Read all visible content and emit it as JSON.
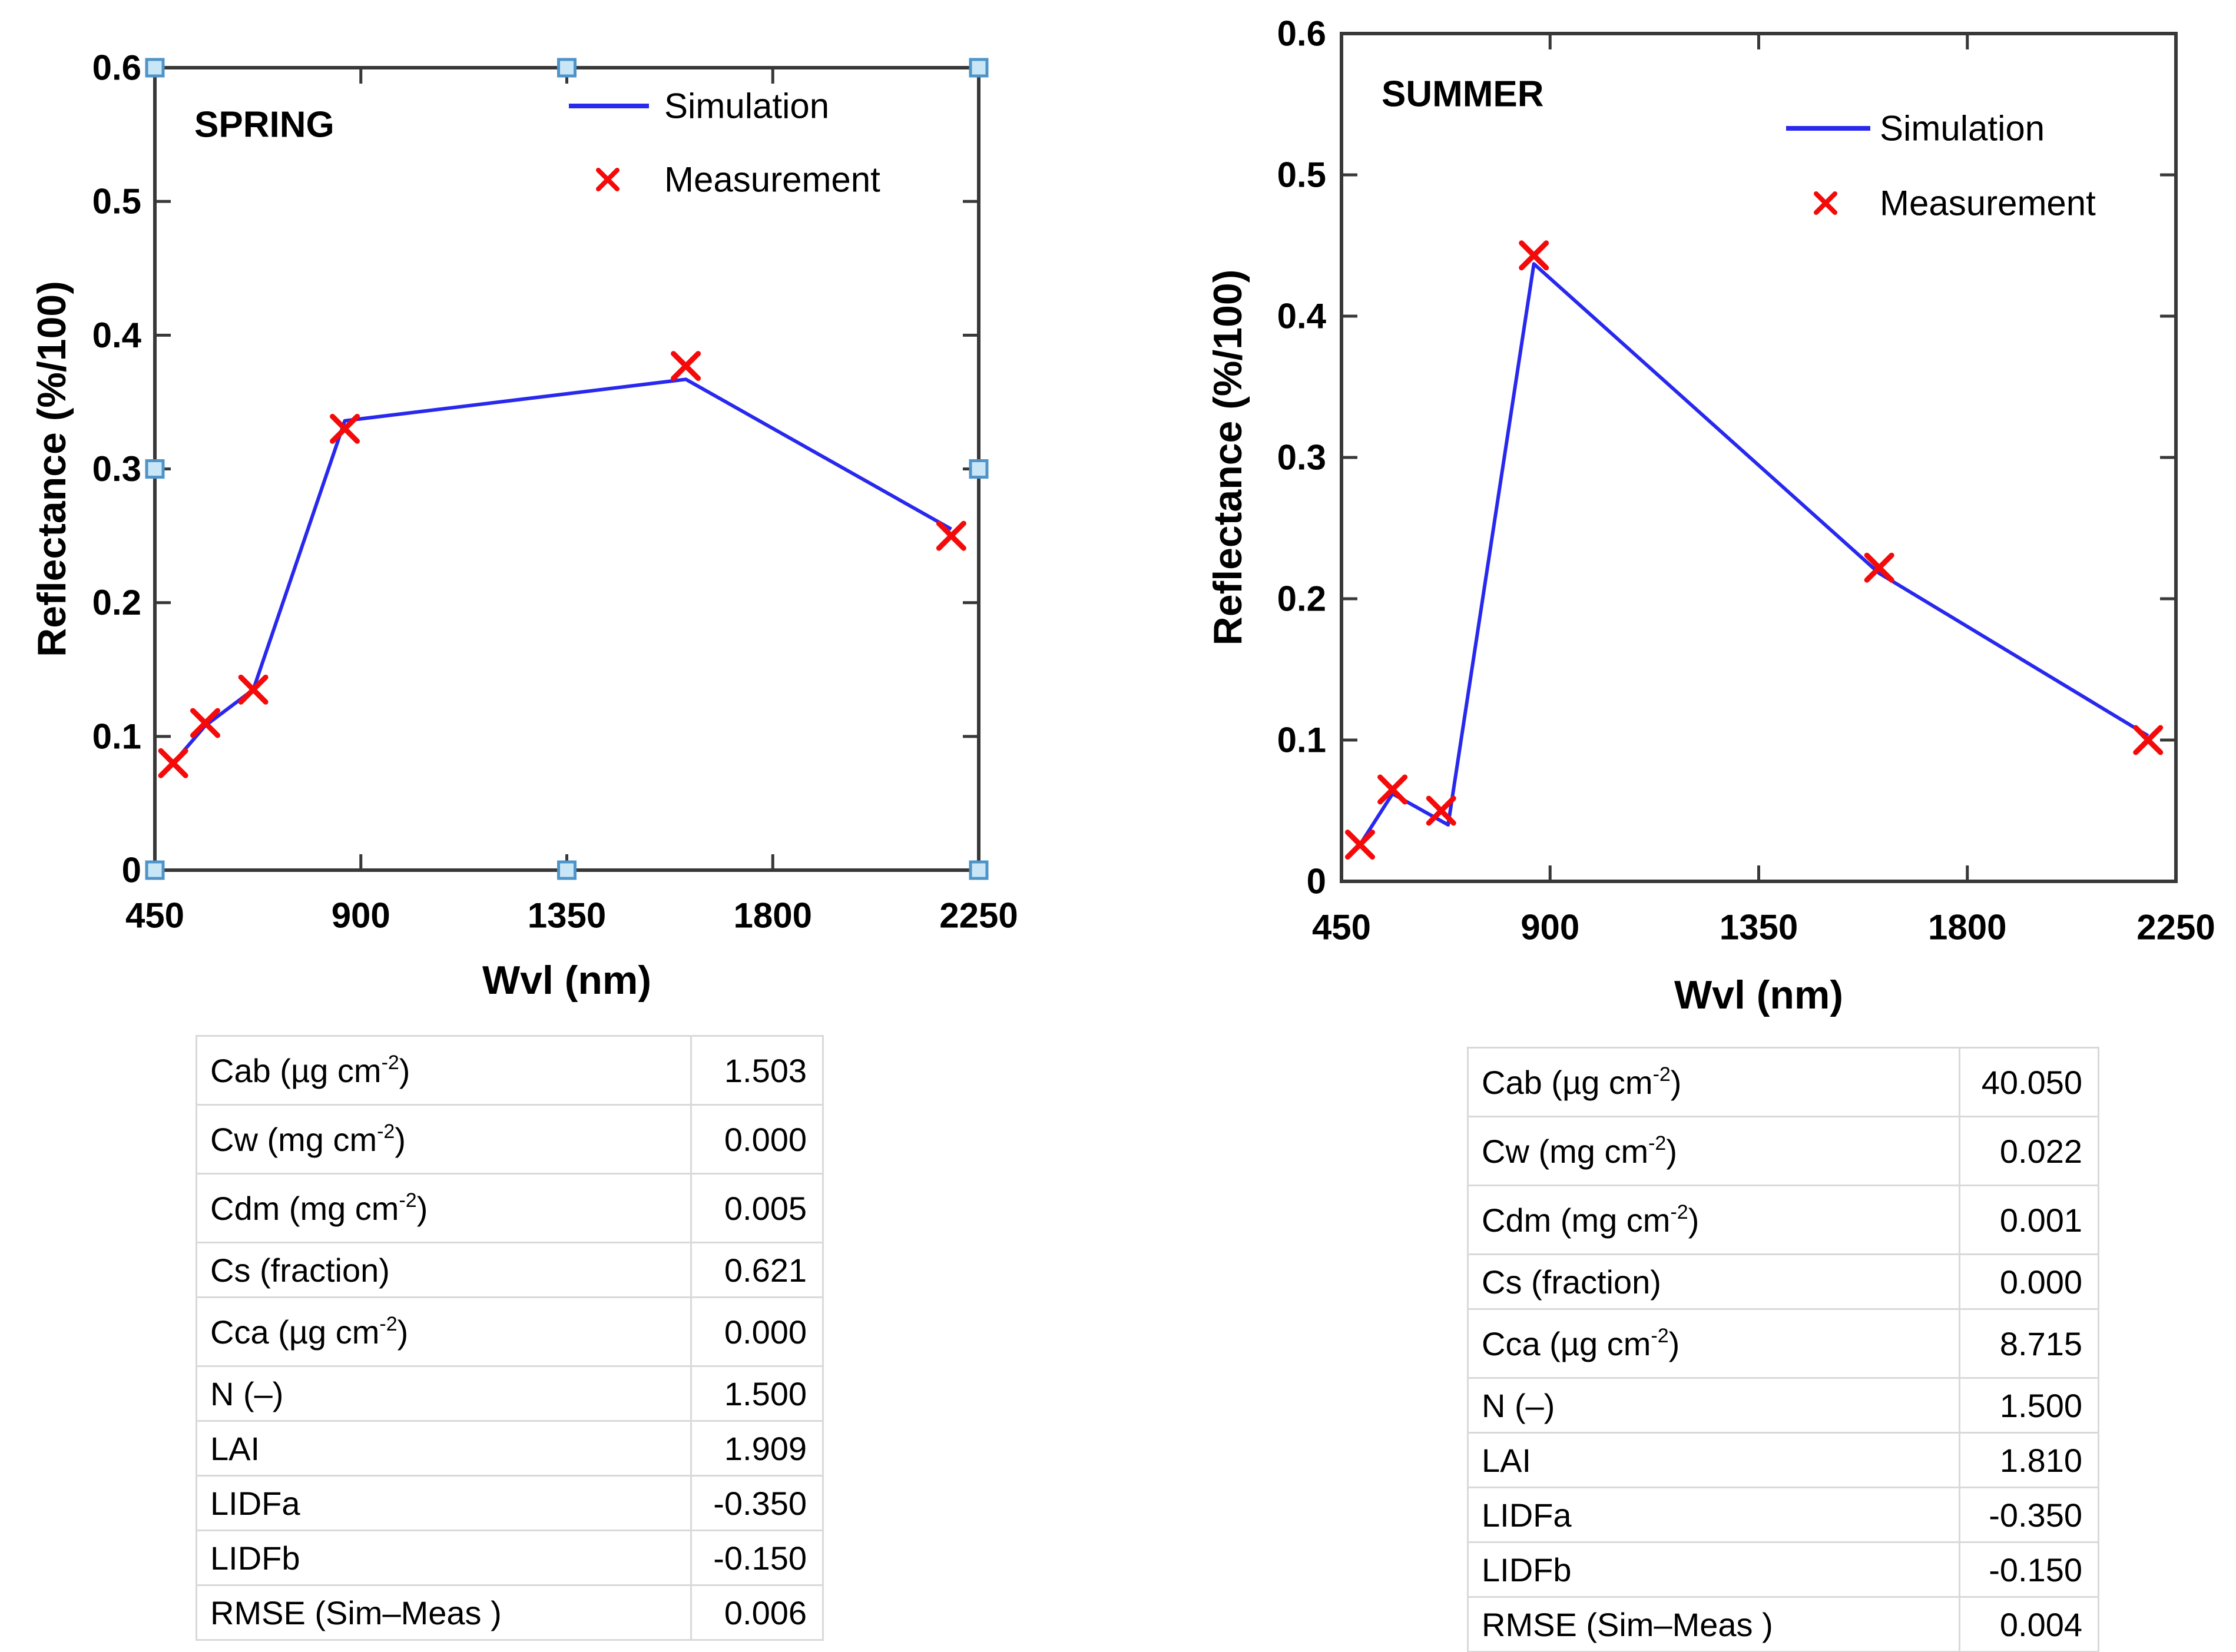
{
  "figure": {
    "background": "#ffffff",
    "colors": {
      "simulation_line": "#2828ee",
      "measurement_marker": "#f50a0a",
      "axis": "#383838",
      "tick_label": "#000000",
      "handle_fill": "#c9e6f6",
      "handle_stroke": "#4e94c9",
      "table_border": "#d9d9d9",
      "table_text": "#000000"
    }
  },
  "chart_data": [
    {
      "type": "line",
      "panel": "spring",
      "title": "SPRING",
      "xlabel": "Wvl (nm)",
      "ylabel": "Reflectance (%/100)",
      "xlim": [
        450,
        2250
      ],
      "ylim": [
        0,
        0.6
      ],
      "x_ticks": [
        450,
        900,
        1350,
        1800,
        2250
      ],
      "y_ticks": [
        0,
        0.1,
        0.2,
        0.3,
        0.4,
        0.5,
        0.6
      ],
      "grid": false,
      "legend_position": "top-right-inside",
      "axes_selected_handles": true,
      "legend": [
        {
          "label": "Simulation",
          "sample": "line"
        },
        {
          "label": "Measurement",
          "sample": "x"
        }
      ],
      "series": [
        {
          "name": "Simulation",
          "type": "line",
          "color": "#2828ee",
          "x": [
            490,
            560,
            665,
            865,
            1610,
            2190
          ],
          "y": [
            0.08,
            0.108,
            0.135,
            0.336,
            0.367,
            0.255
          ]
        },
        {
          "name": "Measurement",
          "type": "scatter",
          "marker": "x",
          "color": "#f50a0a",
          "x": [
            490,
            560,
            665,
            865,
            1610,
            2190
          ],
          "y": [
            0.08,
            0.11,
            0.135,
            0.33,
            0.377,
            0.25
          ]
        }
      ]
    },
    {
      "type": "line",
      "panel": "summer",
      "title": "SUMMER",
      "xlabel": "Wvl (nm)",
      "ylabel": "Reflectance (%/100)",
      "xlim": [
        450,
        2250
      ],
      "ylim": [
        0,
        0.6
      ],
      "x_ticks": [
        450,
        900,
        1350,
        1800,
        2250
      ],
      "y_ticks": [
        0,
        0.1,
        0.2,
        0.3,
        0.4,
        0.5,
        0.6
      ],
      "grid": false,
      "legend_position": "top-right-inside",
      "axes_selected_handles": false,
      "legend": [
        {
          "label": "Simulation",
          "sample": "line"
        },
        {
          "label": "Measurement",
          "sample": "x"
        }
      ],
      "series": [
        {
          "name": "Simulation",
          "type": "line",
          "color": "#2828ee",
          "x": [
            490,
            560,
            680,
            865,
            1610,
            2190
          ],
          "y": [
            0.026,
            0.062,
            0.04,
            0.437,
            0.218,
            0.103
          ]
        },
        {
          "name": "Measurement",
          "type": "scatter",
          "marker": "x",
          "color": "#f50a0a",
          "x": [
            490,
            560,
            665,
            865,
            1610,
            2190
          ],
          "y": [
            0.026,
            0.065,
            0.05,
            0.443,
            0.222,
            0.1
          ]
        }
      ]
    },
    {
      "type": "table",
      "panel": "spring",
      "rows": [
        {
          "label": "Cab (µg cm",
          "sup": "-2",
          "tail": ")",
          "value": "1.503"
        },
        {
          "label": "Cw (mg cm",
          "sup": "-2",
          "tail": ")",
          "value": "0.000"
        },
        {
          "label": "Cdm (mg cm",
          "sup": "-2",
          "tail": ")",
          "value": "0.005"
        },
        {
          "label": "Cs (fraction)",
          "sup": "",
          "tail": "",
          "value": "0.621"
        },
        {
          "label": "Cca (µg cm",
          "sup": "-2",
          "tail": ")",
          "value": "0.000"
        },
        {
          "label": "N (–)",
          "sup": "",
          "tail": "",
          "value": "1.500"
        },
        {
          "label": "LAI",
          "sup": "",
          "tail": "",
          "value": "1.909"
        },
        {
          "label": "LIDFa",
          "sup": "",
          "tail": "",
          "value": "-0.350"
        },
        {
          "label": "LIDFb",
          "sup": "",
          "tail": "",
          "value": "-0.150"
        },
        {
          "label": "RMSE (Sim–Meas )",
          "sup": "",
          "tail": "",
          "value": "0.006"
        }
      ]
    },
    {
      "type": "table",
      "panel": "summer",
      "rows": [
        {
          "label": "Cab (µg cm",
          "sup": "-2",
          "tail": ")",
          "value": "40.050"
        },
        {
          "label": "Cw (mg cm",
          "sup": "-2",
          "tail": ")",
          "value": "0.022"
        },
        {
          "label": "Cdm (mg cm",
          "sup": "-2",
          "tail": ")",
          "value": "0.001"
        },
        {
          "label": "Cs (fraction)",
          "sup": "",
          "tail": "",
          "value": "0.000"
        },
        {
          "label": "Cca (µg cm",
          "sup": "-2",
          "tail": ")",
          "value": "8.715"
        },
        {
          "label": "N (–)",
          "sup": "",
          "tail": "",
          "value": "1.500"
        },
        {
          "label": "LAI",
          "sup": "",
          "tail": "",
          "value": "1.810"
        },
        {
          "label": "LIDFa",
          "sup": "",
          "tail": "",
          "value": "-0.350"
        },
        {
          "label": "LIDFb",
          "sup": "",
          "tail": "",
          "value": "-0.150"
        },
        {
          "label": "RMSE (Sim–Meas )",
          "sup": "",
          "tail": "",
          "value": "0.004"
        }
      ]
    }
  ]
}
